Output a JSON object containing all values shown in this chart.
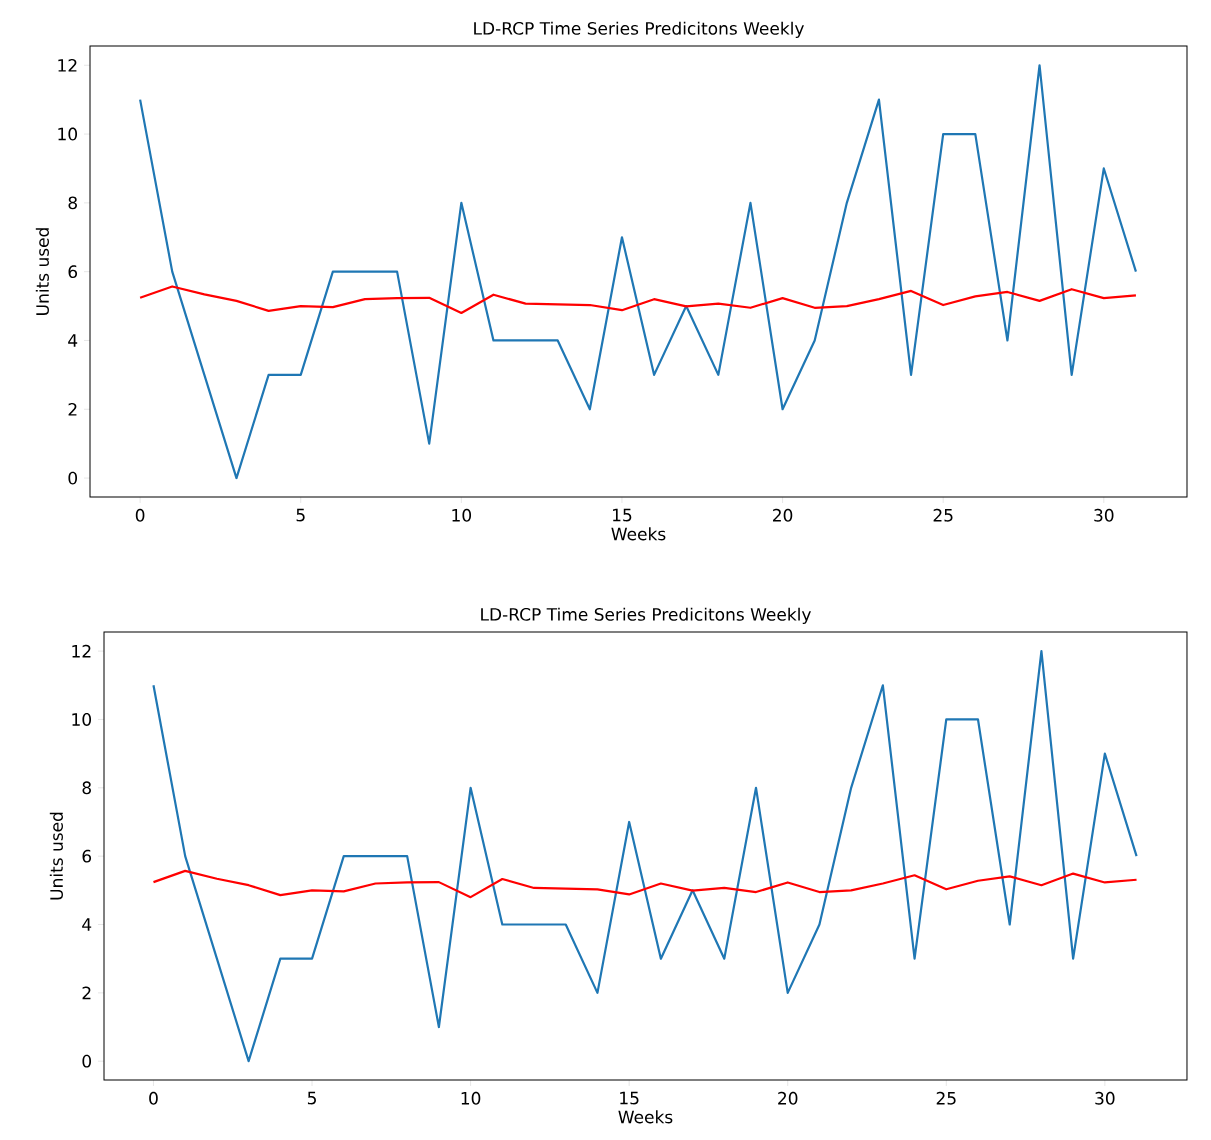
{
  "chart_data": [
    {
      "type": "line",
      "title": "LD-RCP Time Series Predicitons Weekly",
      "xlabel": "Weeks",
      "ylabel": "Units used",
      "x": [
        0,
        1,
        2,
        3,
        4,
        5,
        6,
        7,
        8,
        9,
        10,
        11,
        12,
        13,
        14,
        15,
        16,
        17,
        18,
        19,
        20,
        21,
        22,
        23,
        24,
        25,
        26,
        27,
        28,
        29,
        30,
        31
      ],
      "xlim": [
        -1.56,
        32.59
      ],
      "ylim": [
        -0.55,
        12.56
      ],
      "xticks": [
        0,
        5,
        10,
        15,
        20,
        25,
        30
      ],
      "yticks": [
        0,
        2,
        4,
        6,
        8,
        10,
        12
      ],
      "series": [
        {
          "color": "#1f77b4",
          "values": [
            11,
            6,
            3,
            0,
            3,
            3,
            6,
            6,
            6,
            1,
            8,
            4,
            4,
            4,
            2,
            7,
            3,
            5,
            3,
            8,
            2,
            4,
            8,
            11,
            3,
            10,
            10,
            4,
            12,
            3,
            9,
            6
          ]
        },
        {
          "color": "#ff0000",
          "values": [
            5.24,
            5.57,
            5.34,
            5.15,
            4.86,
            5.0,
            4.97,
            5.2,
            5.23,
            5.24,
            4.8,
            5.33,
            5.07,
            5.05,
            5.03,
            4.88,
            5.2,
            4.99,
            5.07,
            4.95,
            5.23,
            4.95,
            5.0,
            5.2,
            5.44,
            5.03,
            5.28,
            5.41,
            5.15,
            5.49,
            5.23,
            5.31
          ]
        }
      ]
    },
    {
      "type": "line",
      "title": "LD-RCP Time Series Predicitons Weekly",
      "xlabel": "Weeks",
      "ylabel": "Units used",
      "x": [
        0,
        1,
        2,
        3,
        4,
        5,
        6,
        7,
        8,
        9,
        10,
        11,
        12,
        13,
        14,
        15,
        16,
        17,
        18,
        19,
        20,
        21,
        22,
        23,
        24,
        25,
        26,
        27,
        28,
        29,
        30,
        31
      ],
      "xlim": [
        -1.56,
        32.59
      ],
      "ylim": [
        -0.55,
        12.56
      ],
      "xticks": [
        0,
        5,
        10,
        15,
        20,
        25,
        30
      ],
      "yticks": [
        0,
        2,
        4,
        6,
        8,
        10,
        12
      ],
      "series": [
        {
          "color": "#1f77b4",
          "values": [
            11,
            6,
            3,
            0,
            3,
            3,
            6,
            6,
            6,
            1,
            8,
            4,
            4,
            4,
            2,
            7,
            3,
            5,
            3,
            8,
            2,
            4,
            8,
            11,
            3,
            10,
            10,
            4,
            12,
            3,
            9,
            6
          ]
        },
        {
          "color": "#ff0000",
          "values": [
            5.24,
            5.57,
            5.34,
            5.15,
            4.86,
            5.0,
            4.97,
            5.2,
            5.23,
            5.24,
            4.8,
            5.33,
            5.07,
            5.05,
            5.03,
            4.88,
            5.2,
            4.99,
            5.07,
            4.95,
            5.23,
            4.95,
            5.0,
            5.2,
            5.44,
            5.03,
            5.28,
            5.41,
            5.15,
            5.49,
            5.23,
            5.31
          ]
        }
      ]
    }
  ]
}
